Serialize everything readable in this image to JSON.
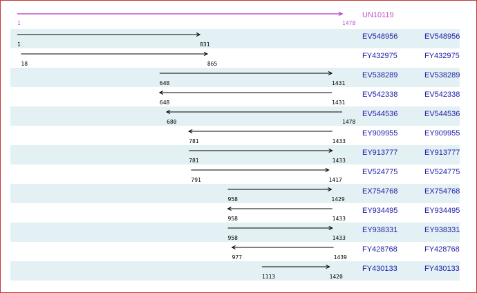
{
  "reference": {
    "name": "UN10119",
    "start": 1,
    "end": 1478
  },
  "alignments": [
    {
      "id": "EV548956",
      "link": "EV548956",
      "start": 1,
      "end": 831,
      "direction": "right"
    },
    {
      "id": "FY432975",
      "link": "FY432975",
      "start": 18,
      "end": 865,
      "direction": "right"
    },
    {
      "id": "EV538289",
      "link": "EV538289",
      "start": 648,
      "end": 1431,
      "direction": "right"
    },
    {
      "id": "EV542338",
      "link": "EV542338",
      "start": 648,
      "end": 1431,
      "direction": "left"
    },
    {
      "id": "EV544536",
      "link": "EV544536",
      "start": 680,
      "end": 1478,
      "direction": "left"
    },
    {
      "id": "EY909955",
      "link": "EY909955",
      "start": 781,
      "end": 1433,
      "direction": "left"
    },
    {
      "id": "EY913777",
      "link": "EY913777",
      "start": 781,
      "end": 1433,
      "direction": "right"
    },
    {
      "id": "EV524775",
      "link": "EV524775",
      "start": 791,
      "end": 1417,
      "direction": "right"
    },
    {
      "id": "EX754768",
      "link": "EX754768",
      "start": 958,
      "end": 1429,
      "direction": "right"
    },
    {
      "id": "EY934495",
      "link": "EY934495",
      "start": 958,
      "end": 1433,
      "direction": "left"
    },
    {
      "id": "EY938331",
      "link": "EY938331",
      "start": 958,
      "end": 1433,
      "direction": "right"
    },
    {
      "id": "FY428768",
      "link": "FY428768",
      "start": 977,
      "end": 1439,
      "direction": "left"
    },
    {
      "id": "FY430133",
      "link": "FY430133",
      "start": 1113,
      "end": 1420,
      "direction": "right"
    }
  ]
}
